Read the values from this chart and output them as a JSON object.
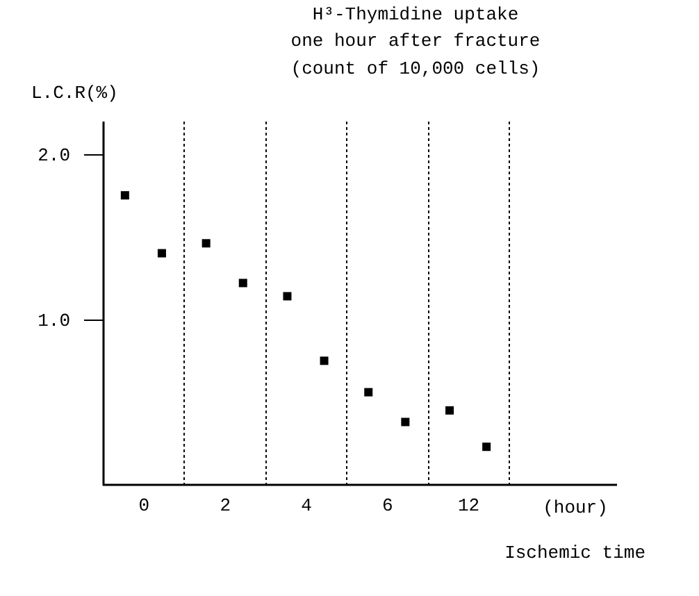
{
  "chart_data": {
    "type": "scatter",
    "title": "H³-Thymidine uptake",
    "subtitle": "one hour after fracture",
    "annotations": [
      "(count of 10,000 cells)",
      "(hour)"
    ],
    "xlabel": "Ischemic time",
    "ylabel": "L.C.R(%)",
    "categories": [
      "0",
      "2",
      "4",
      "6",
      "12"
    ],
    "series": [
      {
        "color": "#000000",
        "values": [
          1.75,
          1.46,
          1.14,
          0.56,
          0.45
        ]
      },
      {
        "color": "#000000",
        "values": [
          1.4,
          1.22,
          0.75,
          0.38,
          0.23
        ]
      }
    ],
    "ylim": [
      0,
      2.2
    ],
    "yticks": [
      {
        "value": 1,
        "label": "1.0"
      },
      {
        "value": 2,
        "label": "2.0"
      }
    ],
    "grid": "x",
    "marker": "square",
    "legend": false
  }
}
